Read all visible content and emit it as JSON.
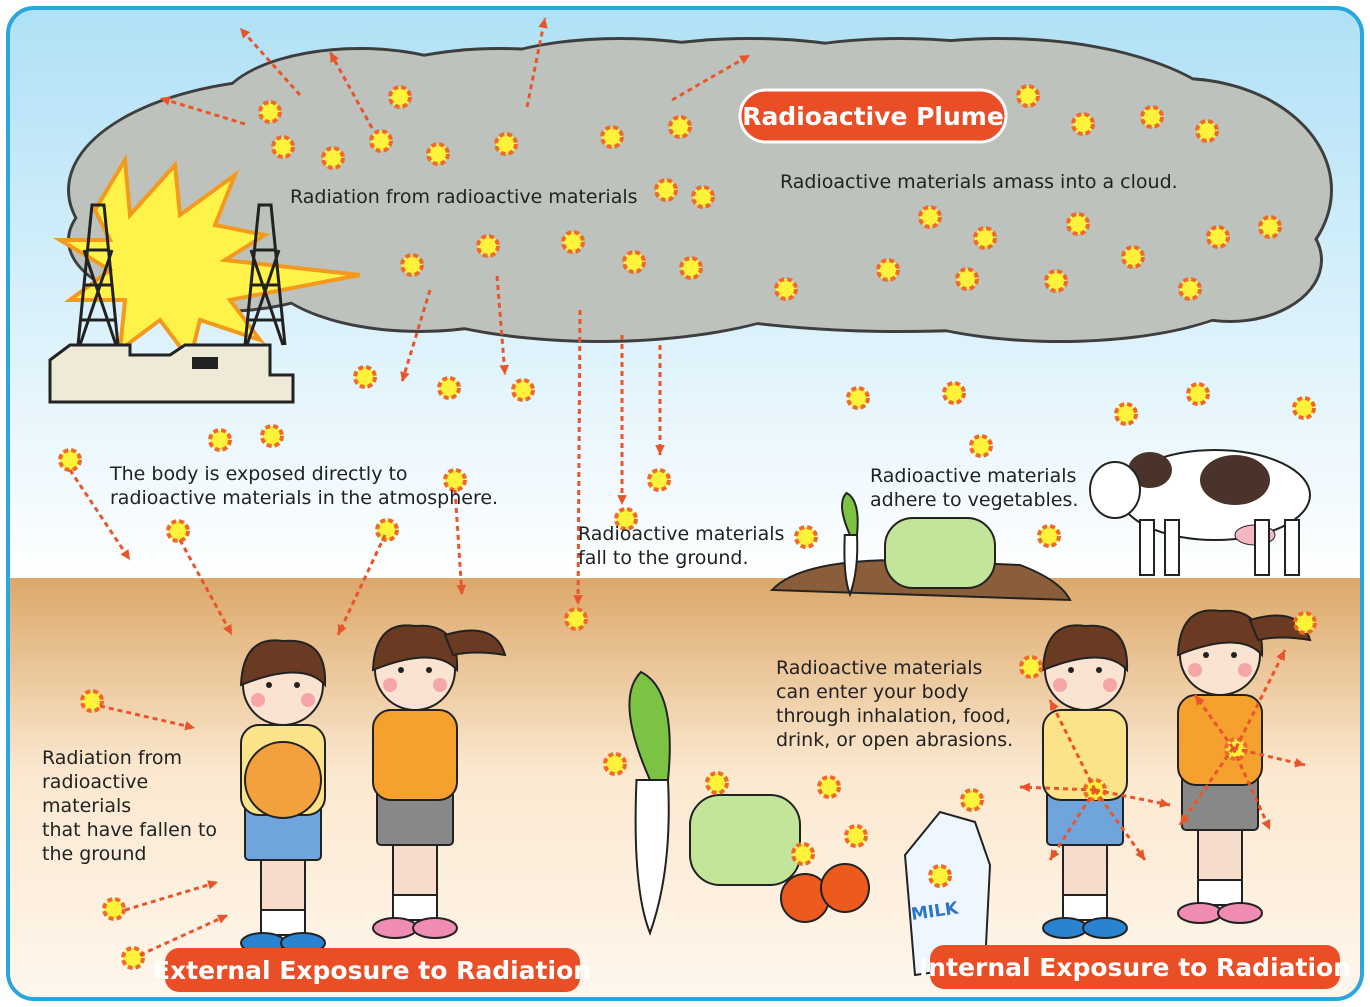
{
  "plume_label": "Radioactive Plume",
  "cloud_caption": "Radiation from radioactive materials",
  "amass_caption": "Radioactive materials amass into a cloud.",
  "atmosphere_caption": {
    "lines": [
      "The body is exposed directly to",
      "radioactive materials in the atmosphere."
    ]
  },
  "fall_caption": {
    "lines": [
      "Radioactive materials",
      "fall to the ground."
    ]
  },
  "vegetables_caption": {
    "lines": [
      "Radioactive materials",
      "adhere to vegetables."
    ]
  },
  "enter_caption": {
    "lines": [
      "Radioactive materials",
      "can enter your body",
      "through inhalation, food,",
      "drink, or open abrasions."
    ]
  },
  "ground_caption": {
    "lines": [
      "Radiation from",
      "radioactive",
      "materials",
      "that have fallen to",
      "the ground"
    ]
  },
  "external_label": "External Exposure to Radiation",
  "internal_label": "Internal Exposure to Radiation",
  "milk_label": "MILK"
}
